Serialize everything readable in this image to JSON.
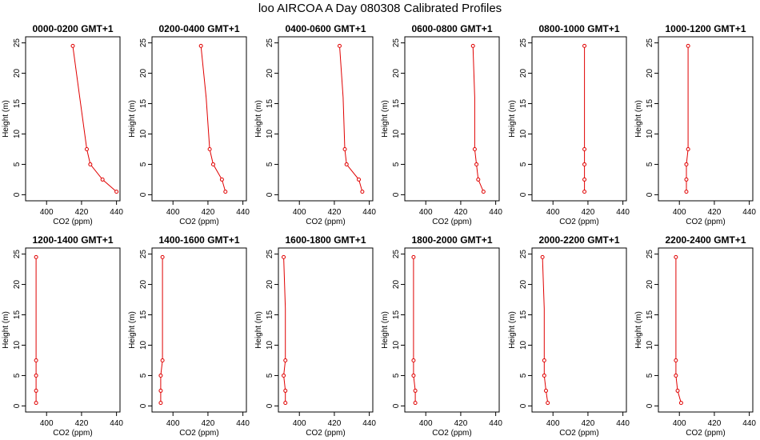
{
  "title": "loo AIRCOA A  Day 080308  Calibrated Profiles",
  "chart_data": {
    "type": "line",
    "xlabel": "CO2 (ppm)",
    "ylabel": "Height (m)",
    "xlim": [
      390,
      440
    ],
    "ylim": [
      0,
      25
    ],
    "x_ticks": [
      400,
      420,
      440
    ],
    "y_ticks": [
      0,
      5,
      10,
      15,
      20,
      25
    ],
    "heights": [
      0.5,
      2.5,
      5,
      7.5,
      16,
      24.5
    ],
    "colors": {
      "line": "#e00000",
      "marker": "#e00000",
      "axis": "#000000"
    },
    "panels": [
      {
        "title": "0000-0200  GMT+1",
        "x": [
          440,
          432,
          425,
          423,
          419,
          415
        ]
      },
      {
        "title": "0200-0400  GMT+1",
        "x": [
          430,
          428,
          423,
          421,
          419,
          416
        ]
      },
      {
        "title": "0400-0600  GMT+1",
        "x": [
          436,
          434,
          427,
          426,
          425,
          423
        ]
      },
      {
        "title": "0600-0800  GMT+1",
        "x": [
          433,
          430,
          429,
          428,
          428,
          427
        ]
      },
      {
        "title": "0800-1000  GMT+1",
        "x": [
          418,
          418,
          418,
          418,
          418,
          418
        ]
      },
      {
        "title": "1000-1200  GMT+1",
        "x": [
          404,
          404,
          404,
          405,
          405,
          405
        ]
      },
      {
        "title": "1200-1400  GMT+1",
        "x": [
          394,
          394,
          394,
          394,
          394,
          394
        ]
      },
      {
        "title": "1400-1600  GMT+1",
        "x": [
          393,
          393,
          393,
          394,
          394,
          394
        ]
      },
      {
        "title": "1600-1800  GMT+1",
        "x": [
          392,
          392,
          391,
          392,
          392,
          391
        ]
      },
      {
        "title": "1800-2000  GMT+1",
        "x": [
          394,
          394,
          393,
          393,
          393,
          393
        ]
      },
      {
        "title": "2000-2200  GMT+1",
        "x": [
          397,
          396,
          395,
          395,
          395,
          394
        ]
      },
      {
        "title": "2200-2400  GMT+1",
        "x": [
          401,
          399,
          398,
          398,
          398,
          398
        ]
      }
    ]
  }
}
